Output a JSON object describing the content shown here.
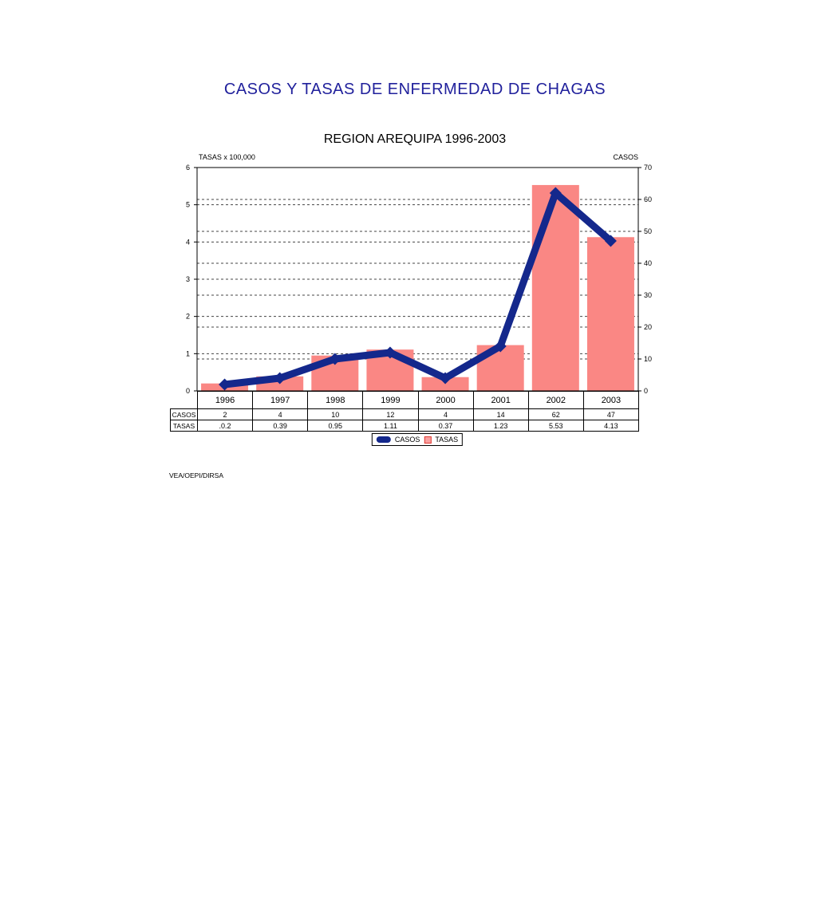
{
  "page": {
    "title": "CASOS Y TASAS DE ENFERMEDAD DE CHAGAS",
    "subtitle": "REGION AREQUIPA 1996-2003",
    "footer": "VEA/OEPI/DIRSA",
    "title_color": "#21219C"
  },
  "chart_data": {
    "type": "bar",
    "subtype": "combo-bar-line-dual-axis",
    "title": "REGION AREQUIPA 1996-2003",
    "categories": [
      "1996",
      "1997",
      "1998",
      "1999",
      "2000",
      "2001",
      "2002",
      "2003"
    ],
    "series": [
      {
        "name": "CASOS",
        "type": "line",
        "axis": "right",
        "color": "#14288C",
        "values": [
          2,
          4,
          10,
          12,
          4,
          14,
          62,
          47
        ]
      },
      {
        "name": "TASAS",
        "type": "bar",
        "axis": "left",
        "color": "#FA8784",
        "values": [
          0.2,
          0.39,
          0.95,
          1.11,
          0.37,
          1.23,
          5.53,
          4.13
        ]
      }
    ],
    "left_axis": {
      "title": "TASAS x 100,000",
      "min": 0,
      "max": 6,
      "tick_step": 1,
      "ticks": [
        0,
        1,
        2,
        3,
        4,
        5,
        6
      ]
    },
    "right_axis": {
      "title": "CASOS",
      "min": 0,
      "max": 70,
      "tick_step": 10,
      "ticks": [
        0,
        10,
        20,
        30,
        40,
        50,
        60,
        70
      ]
    },
    "gridlines": {
      "style": "dashed",
      "color": "#444444",
      "left_values": [
        1,
        2,
        3,
        4,
        5
      ],
      "right_values": [
        10,
        20,
        30,
        40,
        50,
        60
      ]
    },
    "legend_position": "bottom"
  },
  "table": {
    "columns": [
      "1996",
      "1997",
      "1998",
      "1999",
      "2000",
      "2001",
      "2002",
      "2003"
    ],
    "rows": [
      {
        "header": "CASOS",
        "values": [
          "2",
          "4",
          "10",
          "12",
          "4",
          "14",
          "62",
          "47"
        ]
      },
      {
        "header": "TASAS",
        "values": [
          ".0.2",
          "0.39",
          "0.95",
          "1.11",
          "0.37",
          "1.23",
          "5.53",
          "4.13"
        ]
      }
    ]
  },
  "legend": {
    "items": [
      {
        "label": "CASOS",
        "marker": "line",
        "color": "#14288C"
      },
      {
        "label": "TASAS",
        "marker": "square",
        "fill": "#F9A0A0",
        "border": "#E03C34"
      }
    ]
  }
}
